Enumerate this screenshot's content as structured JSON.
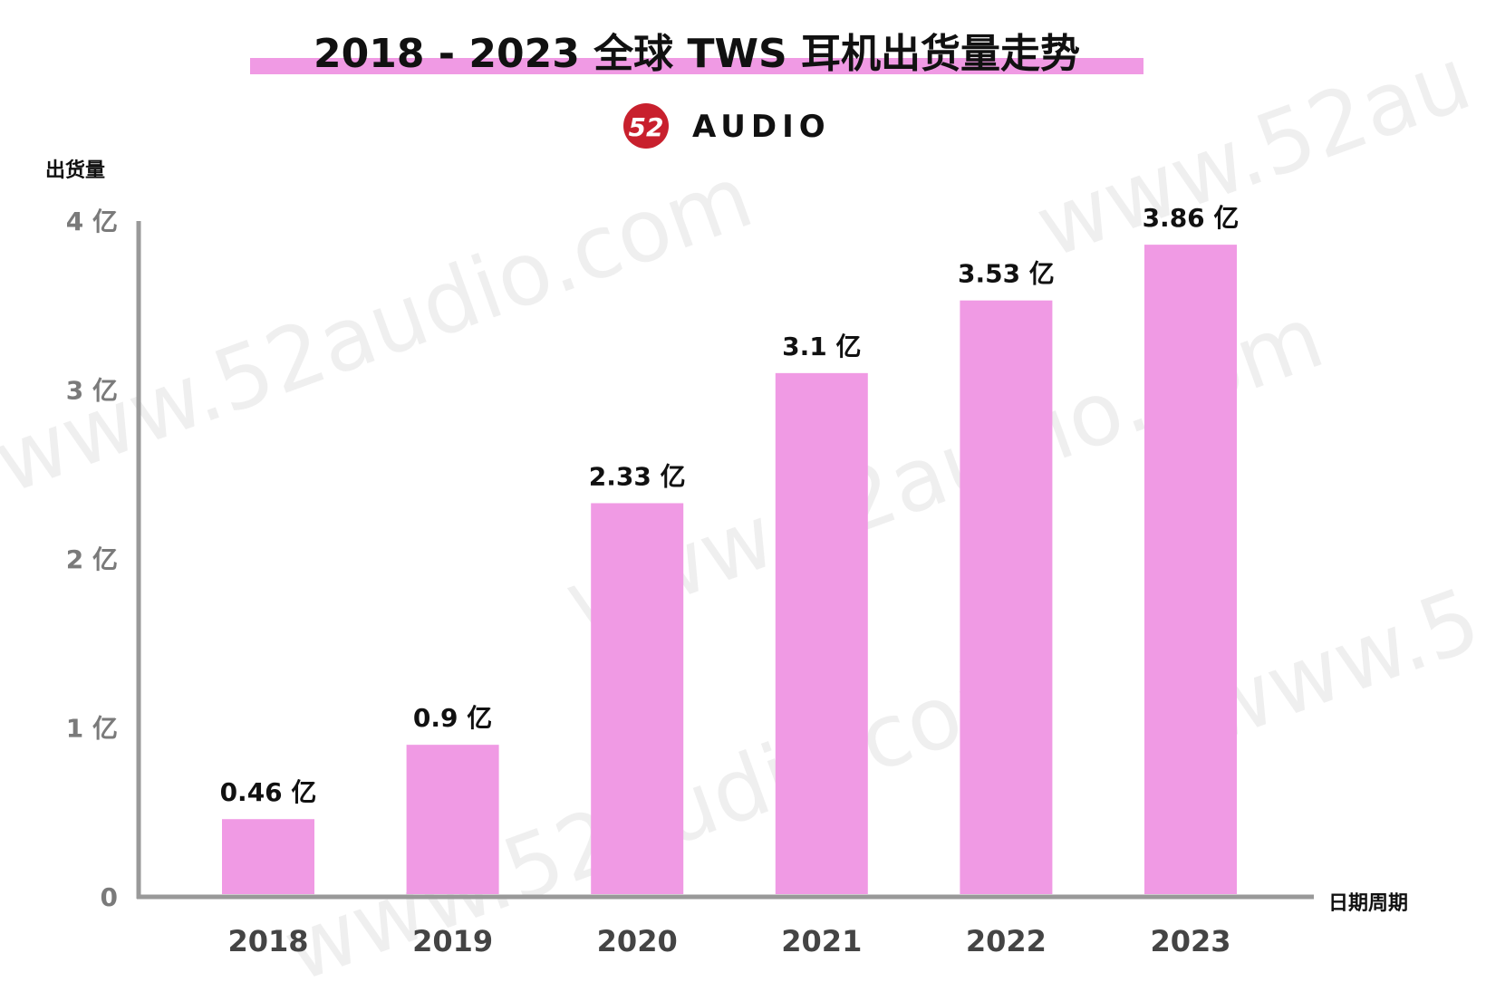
{
  "brand": {
    "logo_text": "52",
    "name": "AUDIO",
    "logo_color": "#c8202d"
  },
  "watermark": {
    "texts": [
      "www.52audio.com",
      "www.52audio.com",
      "www.52audio.com",
      "www.52au",
      "www.5"
    ]
  },
  "colors": {
    "bar": "#f09ae4",
    "title_highlight": "#f09ae4",
    "axis": "#999999"
  },
  "chart_data": {
    "type": "bar",
    "title": "2018 - 2023 全球 TWS 耳机出货量走势",
    "ylabel": "出货量",
    "xlabel": "日期周期",
    "categories": [
      "2018",
      "2019",
      "2020",
      "2021",
      "2022",
      "2023"
    ],
    "values": [
      0.46,
      0.9,
      2.33,
      3.1,
      3.53,
      3.86
    ],
    "data_labels": [
      "0.46 亿",
      "0.9 亿",
      "2.33 亿",
      "3.1 亿",
      "3.53 亿",
      "3.86 亿"
    ],
    "ylim": [
      0,
      4
    ],
    "yticks": [
      {
        "value": 0,
        "label": "0"
      },
      {
        "value": 1,
        "label": "1 亿"
      },
      {
        "value": 2,
        "label": "2 亿"
      },
      {
        "value": 3,
        "label": "3 亿"
      },
      {
        "value": 4,
        "label": "4 亿"
      }
    ],
    "grid": false,
    "legend": "none"
  }
}
